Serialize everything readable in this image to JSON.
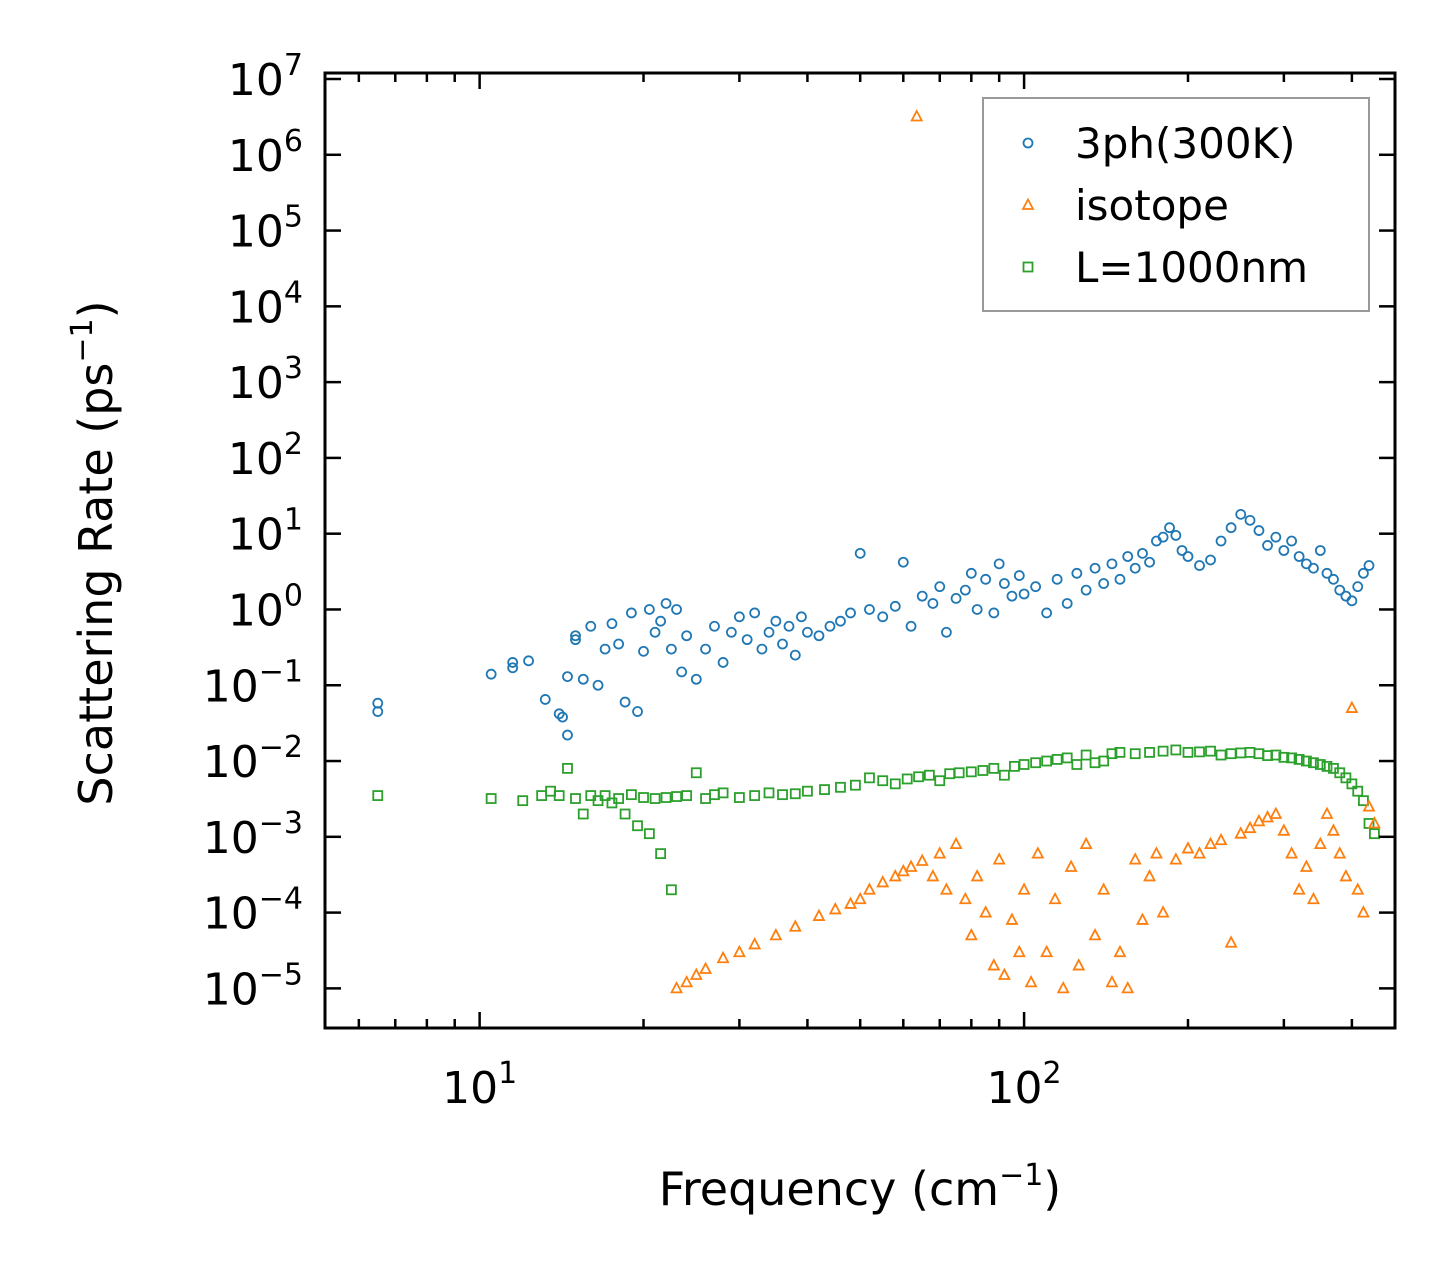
{
  "chart_data": {
    "type": "scatter",
    "title": "",
    "xlabel": "Frequency (cm",
    "xlabel_sup": "−1",
    "xlabel_end": ")",
    "ylabel": "Scattering Rate (ps",
    "ylabel_sup": "−1",
    "ylabel_end": ")",
    "xscale": "log",
    "yscale": "log",
    "xlim": [
      5.2,
      480
    ],
    "ylim": [
      3e-06,
      12000000.0
    ],
    "x_ticks": [
      {
        "value": 10,
        "base": "10",
        "exp": "1"
      },
      {
        "value": 100,
        "base": "10",
        "exp": "2"
      }
    ],
    "y_ticks": [
      {
        "value": 1e-05,
        "base": "10",
        "exp": "−5"
      },
      {
        "value": 0.0001,
        "base": "10",
        "exp": "−4"
      },
      {
        "value": 0.001,
        "base": "10",
        "exp": "−3"
      },
      {
        "value": 0.01,
        "base": "10",
        "exp": "−2"
      },
      {
        "value": 0.1,
        "base": "10",
        "exp": "−1"
      },
      {
        "value": 1,
        "base": "10",
        "exp": "0"
      },
      {
        "value": 10,
        "base": "10",
        "exp": "1"
      },
      {
        "value": 100,
        "base": "10",
        "exp": "2"
      },
      {
        "value": 1000,
        "base": "10",
        "exp": "3"
      },
      {
        "value": 10000,
        "base": "10",
        "exp": "4"
      },
      {
        "value": 100000,
        "base": "10",
        "exp": "5"
      },
      {
        "value": 1000000,
        "base": "10",
        "exp": "6"
      },
      {
        "value": 10000000,
        "base": "10",
        "exp": "7"
      }
    ],
    "legend_position": "top-right",
    "series": [
      {
        "name": "3ph(300K)",
        "marker": "circle",
        "color": "#1f77b4",
        "x": [
          6.5,
          6.5,
          10.5,
          11.5,
          11.5,
          12.3,
          13.2,
          14,
          14.2,
          14.5,
          14.5,
          15,
          15,
          15.5,
          16,
          16.5,
          17,
          17.5,
          18,
          18.5,
          19,
          19.5,
          20,
          20.5,
          21,
          21.5,
          22,
          22.5,
          23,
          23.5,
          24,
          25,
          26,
          27,
          28,
          29,
          30,
          31,
          32,
          33,
          34,
          35,
          36,
          37,
          38,
          39,
          40,
          42,
          44,
          46,
          48,
          50,
          52,
          55,
          58,
          60,
          62,
          65,
          68,
          70,
          72,
          75,
          78,
          80,
          82,
          85,
          88,
          90,
          92,
          95,
          98,
          100,
          105,
          110,
          115,
          120,
          125,
          130,
          135,
          140,
          145,
          150,
          155,
          160,
          165,
          170,
          175,
          180,
          185,
          190,
          195,
          200,
          210,
          220,
          230,
          240,
          250,
          260,
          270,
          280,
          290,
          300,
          310,
          320,
          330,
          340,
          350,
          360,
          370,
          380,
          390,
          400,
          410,
          420,
          430
        ],
        "y": [
          0.058,
          0.045,
          0.14,
          0.2,
          0.17,
          0.21,
          0.065,
          0.042,
          0.038,
          0.022,
          0.13,
          0.45,
          0.4,
          0.12,
          0.6,
          0.1,
          0.3,
          0.65,
          0.35,
          0.06,
          0.9,
          0.045,
          0.28,
          1.0,
          0.5,
          0.7,
          1.2,
          0.3,
          1.0,
          0.15,
          0.45,
          0.12,
          0.3,
          0.6,
          0.2,
          0.5,
          0.8,
          0.4,
          0.9,
          0.3,
          0.5,
          0.7,
          0.35,
          0.6,
          0.25,
          0.8,
          0.5,
          0.45,
          0.6,
          0.7,
          0.9,
          5.5,
          1.0,
          0.8,
          1.1,
          4.2,
          0.6,
          1.5,
          1.2,
          2.0,
          0.5,
          1.4,
          1.8,
          3.0,
          1.0,
          2.5,
          0.9,
          4.0,
          2.2,
          1.5,
          2.8,
          1.6,
          2.0,
          0.9,
          2.5,
          1.2,
          3.0,
          1.8,
          3.5,
          2.2,
          4.0,
          2.5,
          5.0,
          3.5,
          5.5,
          4.2,
          8.0,
          9.0,
          12.0,
          9.5,
          6.0,
          5.0,
          3.8,
          4.5,
          8.0,
          12.0,
          18.0,
          15.0,
          11.0,
          7.0,
          9.0,
          6.0,
          8.0,
          5.0,
          4.0,
          3.5,
          6.0,
          3.0,
          2.5,
          1.8,
          1.5,
          1.3,
          2.0,
          3.0,
          3.8
        ]
      },
      {
        "name": "isotope",
        "marker": "triangle",
        "color": "#ff7f0e",
        "x": [
          23,
          24,
          25,
          26,
          28,
          30,
          32,
          35,
          38,
          42,
          45,
          48,
          50,
          52,
          55,
          58,
          60,
          62,
          63.5,
          65,
          68,
          70,
          72,
          75,
          78,
          80,
          82,
          85,
          88,
          90,
          92,
          95,
          98,
          100,
          103,
          106,
          110,
          114,
          118,
          122,
          126,
          130,
          135,
          140,
          145,
          150,
          155,
          160,
          165,
          170,
          175,
          180,
          190,
          200,
          210,
          220,
          230,
          240,
          250,
          260,
          270,
          280,
          290,
          300,
          310,
          320,
          330,
          340,
          350,
          360,
          370,
          380,
          390,
          400,
          410,
          420,
          430,
          440
        ],
        "y": [
          1e-05,
          1.2e-05,
          1.5e-05,
          1.8e-05,
          2.5e-05,
          3e-05,
          3.8e-05,
          5e-05,
          6.5e-05,
          9e-05,
          0.00011,
          0.00013,
          0.00015,
          0.0002,
          0.00025,
          0.0003,
          0.00035,
          0.0004,
          3200000.0,
          0.00048,
          0.0003,
          0.0006,
          0.0002,
          0.0008,
          0.00015,
          5e-05,
          0.0003,
          0.0001,
          2e-05,
          0.0005,
          1.5e-05,
          8e-05,
          3e-05,
          0.0002,
          1.2e-05,
          0.0006,
          3e-05,
          0.00015,
          1e-05,
          0.0004,
          2e-05,
          0.0008,
          5e-05,
          0.0002,
          1.2e-05,
          3e-05,
          1e-05,
          0.0005,
          8e-05,
          0.0003,
          0.0006,
          0.0001,
          0.0005,
          0.0007,
          0.0006,
          0.0008,
          0.0009,
          4e-05,
          0.0011,
          0.0013,
          0.0016,
          0.0018,
          0.002,
          0.0012,
          0.0006,
          0.0002,
          0.0004,
          0.00015,
          0.0008,
          0.002,
          0.0012,
          0.0006,
          0.0003,
          0.05,
          0.0002,
          0.0001,
          0.0025,
          0.0015
        ]
      },
      {
        "name": "L=1000nm",
        "marker": "square",
        "color": "#2ca02c",
        "x": [
          6.5,
          10.5,
          12,
          13,
          13.5,
          14,
          14.5,
          15,
          15.5,
          16,
          16.5,
          17,
          17.5,
          18,
          18.5,
          19,
          19.5,
          20,
          20.5,
          21,
          21.5,
          22,
          22.5,
          23,
          24,
          25,
          26,
          27,
          28,
          30,
          32,
          34,
          36,
          38,
          40,
          43,
          46,
          49,
          52,
          55,
          58,
          61,
          64,
          67,
          70,
          73,
          76,
          80,
          84,
          88,
          92,
          96,
          100,
          105,
          110,
          115,
          120,
          125,
          130,
          135,
          140,
          145,
          150,
          160,
          170,
          180,
          190,
          200,
          210,
          220,
          230,
          240,
          250,
          260,
          270,
          280,
          290,
          300,
          310,
          320,
          330,
          340,
          350,
          360,
          370,
          380,
          390,
          400,
          410,
          420,
          430,
          440
        ],
        "y": [
          0.0035,
          0.0032,
          0.003,
          0.0035,
          0.004,
          0.0035,
          0.008,
          0.0032,
          0.002,
          0.0035,
          0.003,
          0.0035,
          0.0028,
          0.0032,
          0.002,
          0.0036,
          0.0014,
          0.0033,
          0.0011,
          0.0032,
          0.0006,
          0.0033,
          0.0002,
          0.0034,
          0.0035,
          0.007,
          0.0032,
          0.0036,
          0.0038,
          0.0033,
          0.0035,
          0.0038,
          0.0036,
          0.0037,
          0.004,
          0.0042,
          0.0045,
          0.0048,
          0.006,
          0.0055,
          0.005,
          0.0058,
          0.0062,
          0.0065,
          0.0055,
          0.0068,
          0.007,
          0.0072,
          0.0075,
          0.008,
          0.0065,
          0.0085,
          0.009,
          0.0095,
          0.01,
          0.0105,
          0.011,
          0.009,
          0.012,
          0.0095,
          0.01,
          0.0125,
          0.013,
          0.0125,
          0.013,
          0.0135,
          0.014,
          0.013,
          0.0132,
          0.0135,
          0.012,
          0.0125,
          0.0128,
          0.013,
          0.0125,
          0.0118,
          0.012,
          0.0112,
          0.011,
          0.0105,
          0.01,
          0.0095,
          0.009,
          0.0085,
          0.008,
          0.007,
          0.006,
          0.005,
          0.004,
          0.003,
          0.0015,
          0.0011
        ]
      }
    ]
  }
}
